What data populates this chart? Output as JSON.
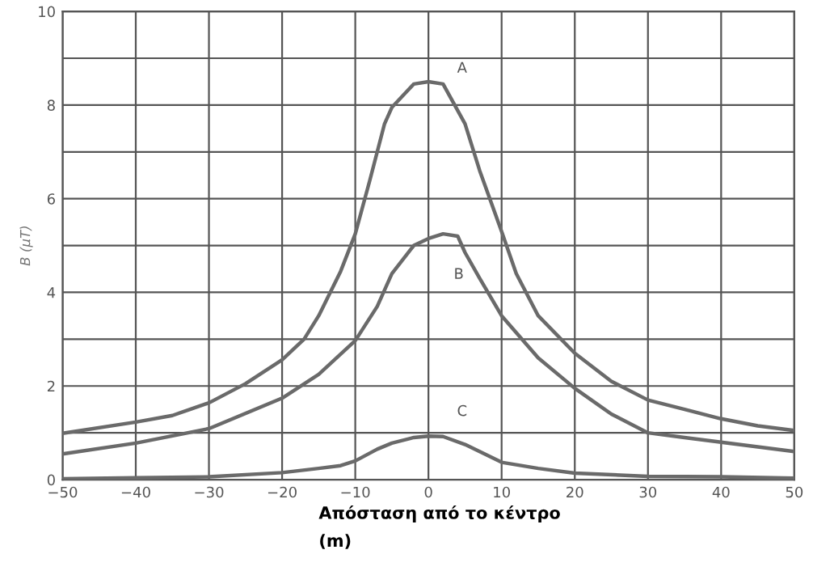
{
  "chart_data": {
    "type": "line",
    "xlabel": "Απόσταση από το κέντρο\n(m)",
    "ylabel": "B (μT)",
    "xlim": [
      -50,
      50
    ],
    "xticks": [
      -50,
      -40,
      -30,
      -20,
      -10,
      0,
      10,
      20,
      30,
      40,
      50
    ],
    "ylim": [
      0,
      10
    ],
    "yticks": [
      0,
      {
        "value": 1,
        "label": null
      },
      2,
      {
        "value": 3,
        "label": null
      },
      4,
      {
        "value": 5,
        "label": null
      },
      6,
      {
        "value": 7,
        "label": null
      },
      8,
      {
        "value": 9,
        "label": null
      },
      10
    ],
    "grid": true,
    "legend": false,
    "marker": "none",
    "line_style": "solid",
    "series": [
      {
        "name": "A",
        "color": "#6a6a6a",
        "x": [
          -50,
          -40,
          -35,
          -30,
          -25,
          -20,
          -17,
          -15,
          -12,
          -10,
          -8,
          -7,
          -6,
          -5,
          -2,
          0,
          2,
          5,
          7,
          10,
          12,
          15,
          20,
          25,
          30,
          35,
          40,
          45,
          50
        ],
        "values": [
          0.99,
          1.23,
          1.37,
          1.64,
          2.05,
          2.56,
          3.0,
          3.5,
          4.45,
          5.25,
          6.4,
          7.0,
          7.6,
          7.95,
          8.45,
          8.5,
          8.45,
          7.6,
          6.6,
          5.3,
          4.4,
          3.5,
          2.7,
          2.1,
          1.7,
          1.5,
          1.3,
          1.15,
          1.05
        ]
      },
      {
        "name": "B",
        "color": "#6a6a6a",
        "x": [
          -50,
          -40,
          -30,
          -20,
          -15,
          -10,
          -7,
          -5,
          -2,
          0,
          2,
          4,
          5,
          7,
          10,
          15,
          20,
          25,
          30,
          35,
          40,
          45,
          50
        ],
        "values": [
          0.55,
          0.78,
          1.09,
          1.74,
          2.25,
          2.97,
          3.7,
          4.4,
          5.0,
          5.15,
          5.25,
          5.2,
          4.85,
          4.3,
          3.5,
          2.6,
          1.95,
          1.4,
          1.0,
          0.9,
          0.8,
          0.7,
          0.6
        ]
      },
      {
        "name": "C",
        "color": "#6a6a6a",
        "x": [
          -50,
          -40,
          -30,
          -20,
          -15,
          -12,
          -10,
          -7,
          -5,
          -2,
          0,
          2,
          5,
          10,
          15,
          20,
          30,
          40,
          50
        ],
        "values": [
          0.02,
          0.04,
          0.06,
          0.15,
          0.24,
          0.3,
          0.4,
          0.65,
          0.78,
          0.9,
          0.93,
          0.92,
          0.75,
          0.37,
          0.24,
          0.14,
          0.07,
          0.06,
          0.03
        ]
      }
    ]
  }
}
